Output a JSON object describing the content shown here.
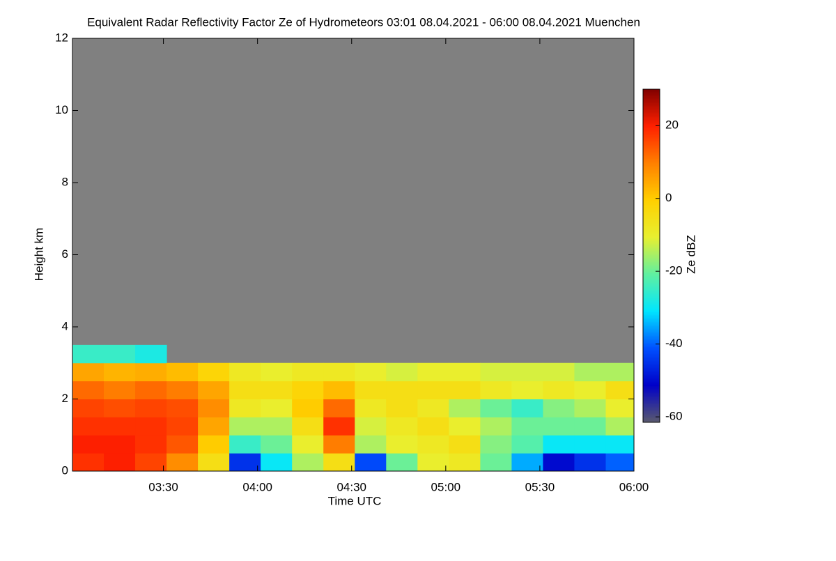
{
  "chart_data": {
    "type": "heatmap",
    "title": "Equivalent Radar Reflectivity Factor Ze of Hydrometeors   03:01 08.04.2021 - 06:00 08.04.2021 Muenchen",
    "xlabel": "Time UTC",
    "ylabel": "Height km",
    "xlim": [
      181,
      360
    ],
    "xticks": [
      {
        "value": 210,
        "label": "03:30"
      },
      {
        "value": 240,
        "label": "04:00"
      },
      {
        "value": 270,
        "label": "04:30"
      },
      {
        "value": 300,
        "label": "05:00"
      },
      {
        "value": 330,
        "label": "05:30"
      },
      {
        "value": 360,
        "label": "06:00"
      }
    ],
    "ylim": [
      0,
      12
    ],
    "yticks": [
      0,
      2,
      4,
      6,
      8,
      10,
      12
    ],
    "x": [
      186,
      196,
      206,
      216,
      226,
      236,
      246,
      256,
      266,
      276,
      286,
      296,
      306,
      316,
      326,
      336,
      346,
      356
    ],
    "y": [
      0.25,
      0.75,
      1.25,
      1.75,
      2.25,
      2.75,
      3.25
    ],
    "values": [
      [
        18,
        20,
        18,
        16,
        12,
        5,
        -25
      ],
      [
        20,
        20,
        18,
        15,
        10,
        3,
        -25
      ],
      [
        16,
        18,
        18,
        16,
        12,
        4,
        -28
      ],
      [
        8,
        14,
        16,
        15,
        10,
        2,
        null
      ],
      [
        -5,
        0,
        5,
        8,
        5,
        -2,
        null
      ],
      [
        -45,
        -25,
        -15,
        -8,
        -5,
        -8,
        null
      ],
      [
        -30,
        -20,
        -15,
        -10,
        -5,
        -10,
        null
      ],
      [
        -15,
        -10,
        -5,
        0,
        -2,
        -8,
        null
      ],
      [
        -5,
        10,
        18,
        12,
        2,
        -8,
        null
      ],
      [
        -42,
        -15,
        -12,
        -8,
        -5,
        -10,
        null
      ],
      [
        -20,
        -10,
        -8,
        -5,
        -5,
        -12,
        null
      ],
      [
        -10,
        -8,
        -5,
        -8,
        -5,
        -10,
        null
      ],
      [
        -8,
        -5,
        -10,
        -15,
        -5,
        -10,
        null
      ],
      [
        -20,
        -18,
        -15,
        -20,
        -8,
        -12,
        null
      ],
      [
        -35,
        -22,
        -20,
        -25,
        -10,
        -12,
        null
      ],
      [
        -50,
        -30,
        -20,
        -18,
        -8,
        -12,
        null
      ],
      [
        -45,
        -30,
        -20,
        -15,
        -10,
        -15,
        null
      ],
      [
        -40,
        -30,
        -15,
        -10,
        -5,
        -15,
        null
      ]
    ],
    "missing_color": "#808080",
    "colormap": [
      "#5a5a6e",
      "#0000c8",
      "#0050ff",
      "#00e6ff",
      "#60f0a0",
      "#e8f030",
      "#ffd000",
      "#ff8000",
      "#ff2000",
      "#800000"
    ],
    "colorbar": {
      "label": "Ze dBZ",
      "clim": [
        -61.5,
        30
      ],
      "ticks": [
        20,
        0,
        -20,
        -40,
        -60
      ]
    }
  }
}
